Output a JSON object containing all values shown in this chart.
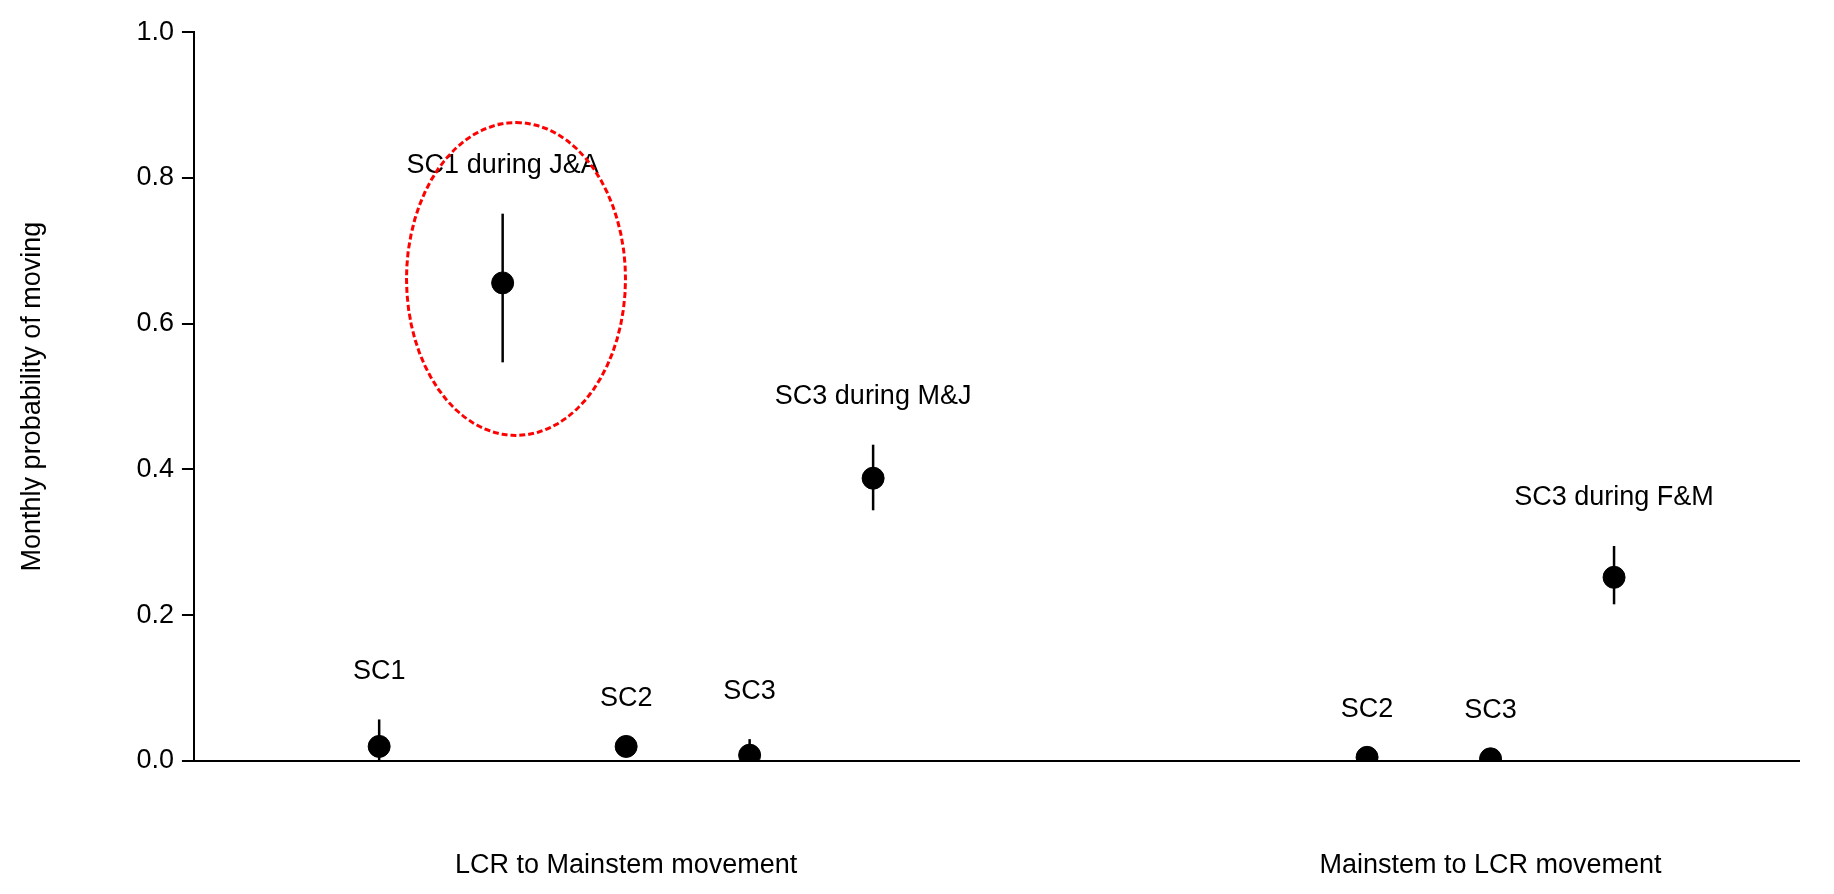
{
  "chart_data": {
    "type": "scatter",
    "ylabel": "Monthly probability of moving",
    "categories": [
      null,
      null,
      null,
      "LCR to Mainstem movement",
      null,
      null,
      null,
      null,
      null,
      null,
      "Mainstem to LCR movement",
      null,
      null
    ],
    "values": [
      null,
      0.02,
      0.656,
      0.02,
      0.008,
      0.388,
      null,
      null,
      null,
      0.005,
      0.003,
      0.252,
      null
    ],
    "errors": [
      null,
      [
        0.0,
        0.057
      ],
      [
        0.547,
        0.751
      ],
      null,
      [
        0.0,
        0.03
      ],
      [
        0.344,
        0.434
      ],
      null,
      null,
      null,
      null,
      null,
      [
        0.215,
        0.295
      ],
      null
    ],
    "color": "#000000",
    "marker": "circle",
    "ylim": [
      0,
      1
    ],
    "yticks": [
      {
        "value": 0,
        "label": "0.0"
      },
      {
        "value": 0.2,
        "label": "0.2"
      },
      {
        "value": 0.4,
        "label": "0.4"
      },
      {
        "value": 0.6,
        "label": "0.6"
      },
      {
        "value": 0.8,
        "label": "0.8"
      },
      {
        "value": 1,
        "label": "1.0"
      }
    ],
    "grid": false,
    "legend": false,
    "annotations": [
      "SC1",
      "SC1 during J&A",
      "SC2",
      "SC3",
      "SC3 during M&J",
      "SC2",
      "SC3",
      "SC3 during F&M"
    ]
  }
}
